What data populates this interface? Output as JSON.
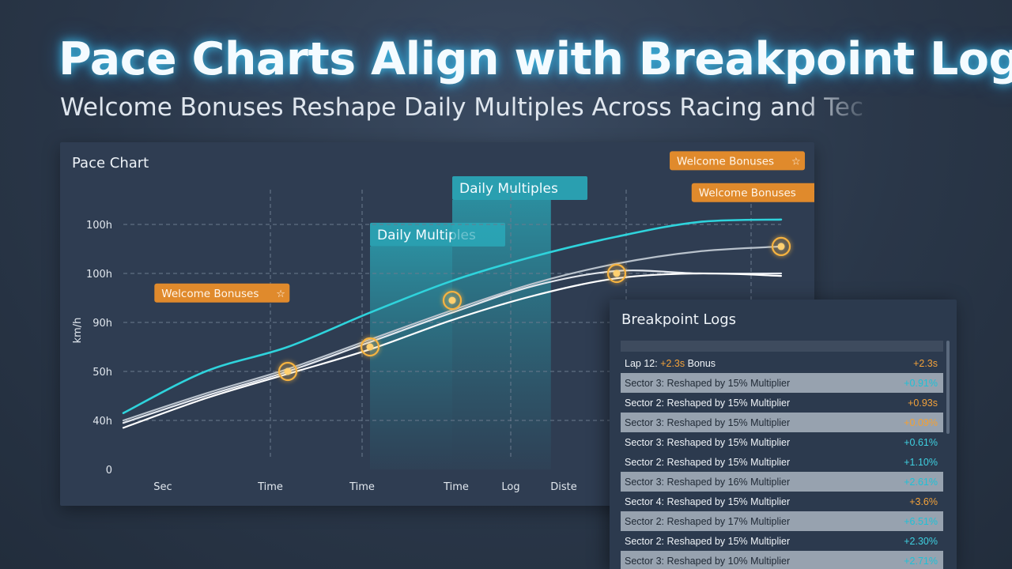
{
  "header": {
    "title": "Pace Charts Align with Breakpoint Logs",
    "subtitle": "Welcome Bonuses Reshape Daily Multiples Across Racing and Tec"
  },
  "chart_panel": {
    "title": "Pace Chart"
  },
  "chart_data": {
    "type": "line",
    "title": "Pace Chart",
    "ylabel": "km/h",
    "y_tick_labels": [
      "0",
      "40h",
      "50h",
      "90h",
      "100h",
      "100h"
    ],
    "x_tick_labels": [
      "Sec",
      "Time",
      "Time",
      "Time",
      "Log",
      "Diste"
    ],
    "grid": true,
    "x_range": [
      0,
      12
    ],
    "y_range": [
      0,
      5
    ],
    "series": [
      {
        "color": "#2fd3dc",
        "x": [
          0,
          1.5,
          3,
          4.5,
          6,
          7.5,
          9,
          10.5,
          12
        ],
        "y": [
          1.15,
          2.0,
          2.5,
          3.2,
          3.85,
          4.35,
          4.75,
          5.05,
          5.1
        ]
      },
      {
        "color": "#b9c2cc",
        "x": [
          0,
          1.5,
          3,
          4.5,
          6,
          7.5,
          9,
          10.5,
          12
        ],
        "y": [
          1.0,
          1.55,
          2.05,
          2.65,
          3.25,
          3.8,
          4.2,
          4.45,
          4.55
        ]
      },
      {
        "color": "#e4e8ee",
        "x": [
          0,
          1.5,
          3,
          4.5,
          6,
          7.5,
          9,
          10.5,
          12
        ],
        "y": [
          0.95,
          1.5,
          2.0,
          2.6,
          3.2,
          3.75,
          4.05,
          4.0,
          4.0
        ]
      },
      {
        "color": "#ffffff",
        "x": [
          0,
          1.5,
          3,
          4.5,
          6,
          7.5,
          9,
          10.5,
          12
        ],
        "y": [
          0.85,
          1.45,
          1.95,
          2.45,
          3.05,
          3.55,
          3.9,
          4.0,
          3.95
        ]
      }
    ],
    "markers": [
      {
        "x": 3,
        "y": 2.0
      },
      {
        "x": 4.5,
        "y": 2.5
      },
      {
        "x": 6,
        "y": 3.45
      },
      {
        "x": 9,
        "y": 4.0
      },
      {
        "x": 12,
        "y": 4.55
      }
    ],
    "highlight_bands": [
      {
        "label": "Daily Multiples",
        "x_start": 4.5,
        "x_end": 6.0,
        "y_top": 4.55
      },
      {
        "label": "Daily Multiples",
        "x_start": 6.0,
        "x_end": 7.8,
        "y_top": 5.5
      }
    ],
    "annotations": [
      {
        "text": "Welcome Bonuses",
        "icon": "star-badge-icon",
        "x": 1.8,
        "y": 3.6
      },
      {
        "text": "Welcome Bonuses",
        "icon": "star-badge-icon",
        "x": 11.2,
        "y": 6.3
      },
      {
        "text": "Welcome Bonuses",
        "icon": "star-badge-icon",
        "x": 11.6,
        "y": 5.65
      }
    ],
    "accent_colors": {
      "cyan": "#2fd3dc",
      "orange": "#e08a2c",
      "band": "#2a9fb0"
    }
  },
  "logs_panel": {
    "title": "Breakpoint Logs",
    "rows": [
      {
        "prefix": "Lap 12: ",
        "highlight": "+2.3s",
        "suffix": " Bonus",
        "value": "+2.3s",
        "value_color": "orange",
        "shaded": false
      },
      {
        "prefix": "Sector 3: Reshaped by 15% Multiplier",
        "highlight": "",
        "suffix": "",
        "value": "+0.91%",
        "value_color": "cyan",
        "shaded": true
      },
      {
        "prefix": "Sector 2: Reshaped by 15% Multiplier",
        "highlight": "",
        "suffix": "",
        "value": "+0.93s",
        "value_color": "orange",
        "shaded": false
      },
      {
        "prefix": "Sector 3: Reshaped by 15% Multiplier",
        "highlight": "",
        "suffix": "",
        "value": "+0.09%",
        "value_color": "orange",
        "shaded": true
      },
      {
        "prefix": "Sector 3: Reshaped by 15% Multiplier",
        "highlight": "",
        "suffix": "",
        "value": "+0.61%",
        "value_color": "cyan",
        "shaded": false
      },
      {
        "prefix": "Sector 2: Reshaped by 15% Multiplier",
        "highlight": "",
        "suffix": "",
        "value": "+1.10%",
        "value_color": "cyan",
        "shaded": false
      },
      {
        "prefix": "Sector 3: Reshaped by 16% Multiplier",
        "highlight": "",
        "suffix": "",
        "value": "+2.61%",
        "value_color": "cyan",
        "shaded": true
      },
      {
        "prefix": "Sector 4: Reshaped by 15% Multiplier",
        "highlight": "",
        "suffix": "",
        "value": "+3.6%",
        "value_color": "orange",
        "shaded": false
      },
      {
        "prefix": "Sector 2: Reshaped by 17% Multiplier",
        "highlight": "",
        "suffix": "",
        "value": "+6.51%",
        "value_color": "cyan",
        "shaded": true
      },
      {
        "prefix": "Sector 2: Reshaped by 15% Multiplier",
        "highlight": "",
        "suffix": "",
        "value": "+2.30%",
        "value_color": "cyan",
        "shaded": false
      },
      {
        "prefix": "Sector 3: Reshaped by 10% Multiplier",
        "highlight": "",
        "suffix": "",
        "value": "+2.71%",
        "value_color": "cyan",
        "shaded": true
      }
    ]
  }
}
